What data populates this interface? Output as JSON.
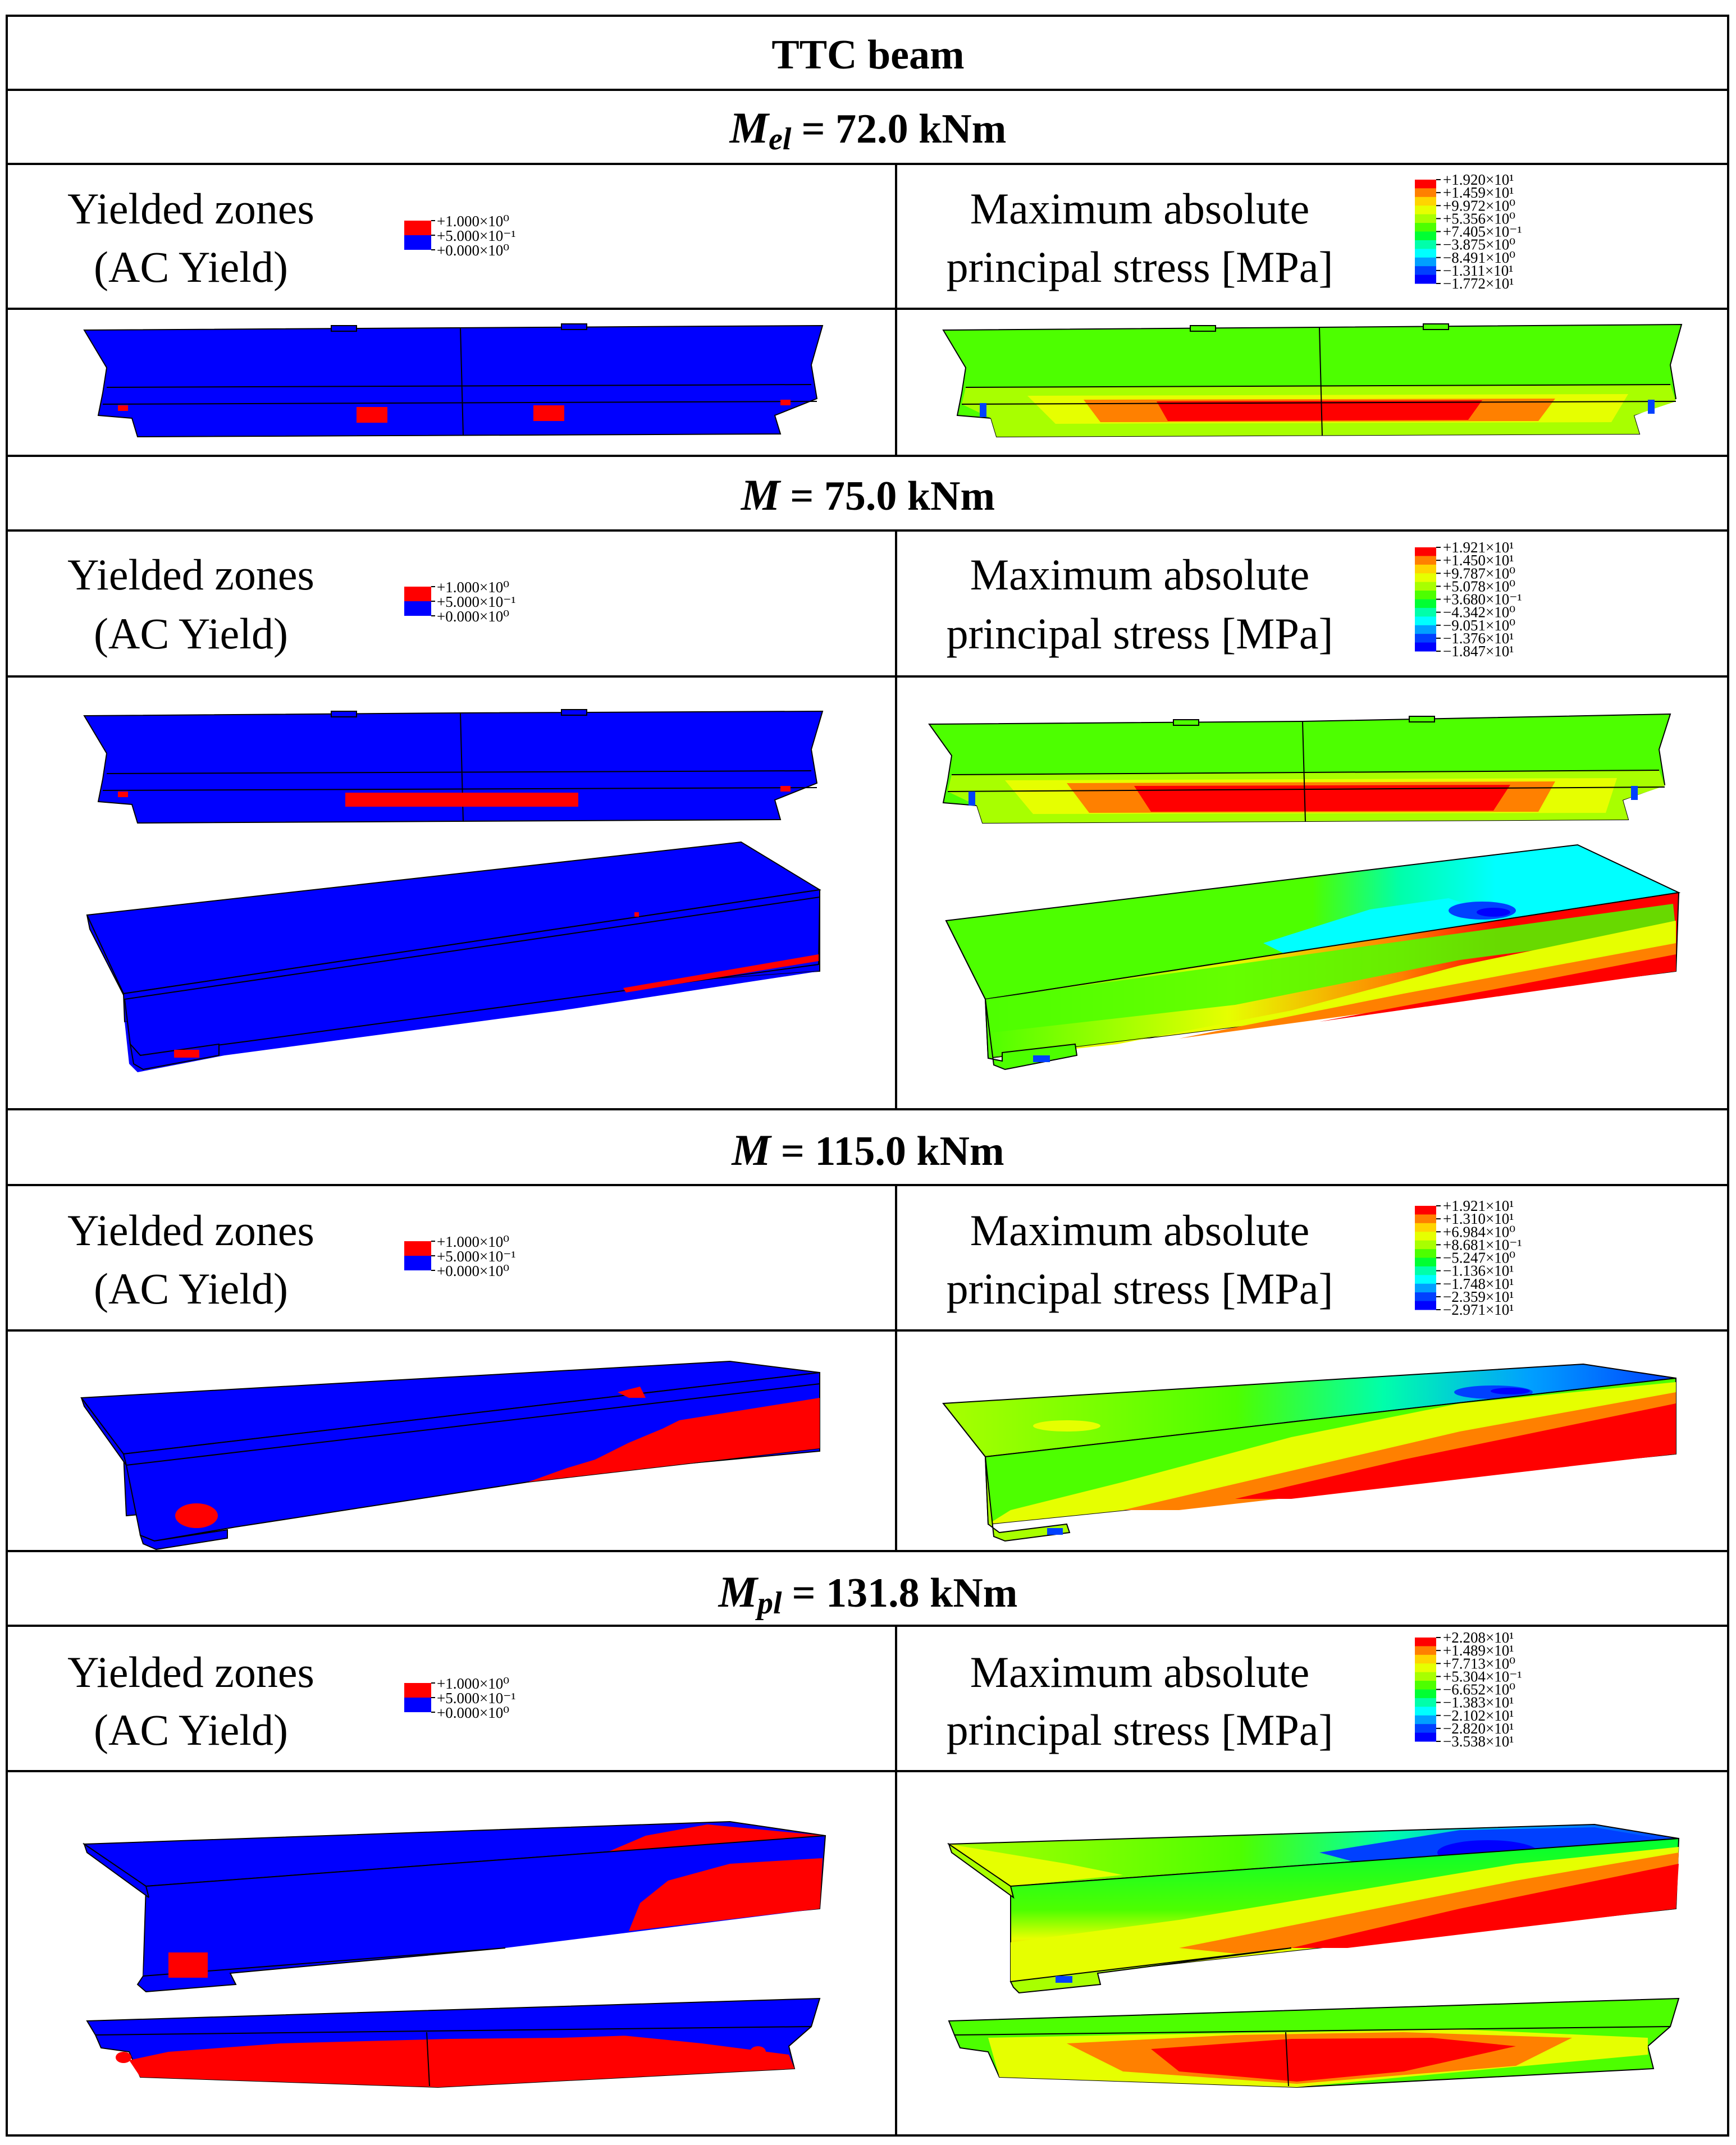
{
  "table_title": "TTC beam",
  "col_left_title": [
    "Yielded zones",
    "(AC Yield)"
  ],
  "col_right_title": [
    "Maximum absolute",
    "principal stress [MPa]"
  ],
  "colors": {
    "yield_red": "#ff0000",
    "yield_blue": "#0000ff",
    "contour": [
      "#ff0000",
      "#ff8000",
      "#ffd400",
      "#e6ff00",
      "#a8ff00",
      "#4dff00",
      "#00ff33",
      "#00ffaa",
      "#00ffff",
      "#00a0ff",
      "#0040ff",
      "#0000ff"
    ]
  },
  "yield_legend": [
    "+1.000×10⁰",
    "+5.000×10⁻¹",
    "+0.000×10⁰"
  ],
  "sections": [
    {
      "moment_symbol": "M",
      "moment_subscript": "el",
      "moment_value": "= 72.0 kNm",
      "stress_legend": [
        "+1.920×10¹",
        "+1.459×10¹",
        "+9.972×10⁰",
        "+5.356×10⁰",
        "+7.405×10⁻¹",
        "−3.875×10⁰",
        "−8.491×10⁰",
        "−1.311×10¹",
        "−1.772×10¹"
      ]
    },
    {
      "moment_symbol": "M",
      "moment_subscript": "",
      "moment_value": "= 75.0 kNm",
      "stress_legend": [
        "+1.921×10¹",
        "+1.450×10¹",
        "+9.787×10⁰",
        "+5.078×10⁰",
        "+3.680×10⁻¹",
        "−4.342×10⁰",
        "−9.051×10⁰",
        "−1.376×10¹",
        "−1.847×10¹"
      ]
    },
    {
      "moment_symbol": "M",
      "moment_subscript": "",
      "moment_value": "= 115.0 kNm",
      "stress_legend": [
        "+1.921×10¹",
        "+1.310×10¹",
        "+6.984×10⁰",
        "+8.681×10⁻¹",
        "−5.247×10⁰",
        "−1.136×10¹",
        "−1.748×10¹",
        "−2.359×10¹",
        "−2.971×10¹"
      ]
    },
    {
      "moment_symbol": "M",
      "moment_subscript": "pl",
      "moment_value": "= 131.8 kNm",
      "stress_legend": [
        "+2.208×10¹",
        "+1.489×10¹",
        "+7.713×10⁰",
        "+5.304×10⁻¹",
        "−6.652×10⁰",
        "−1.383×10¹",
        "−2.102×10¹",
        "−2.820×10¹",
        "−3.538×10¹"
      ]
    }
  ]
}
